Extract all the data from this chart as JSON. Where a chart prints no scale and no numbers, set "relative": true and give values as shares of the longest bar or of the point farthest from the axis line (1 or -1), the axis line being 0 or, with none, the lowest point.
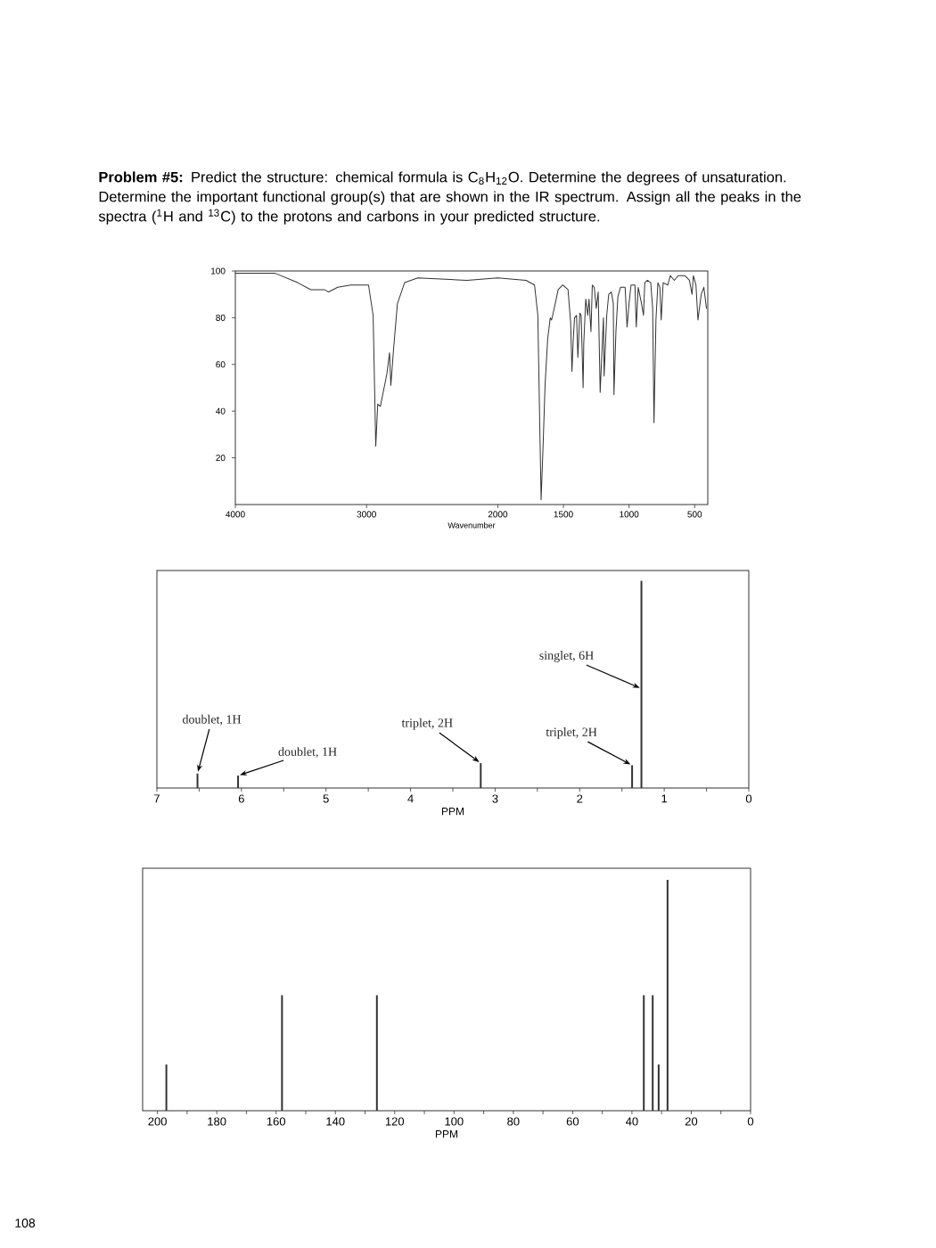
{
  "chart_data": [
    {
      "type": "line",
      "title": "**Problem #5:** Predict the structure: chemical formula is C$_{8}$H$_{12}$O. Determine the degrees of unsaturation. Determine the important functional group(s) that are shown in the IR spectrum. Assign all the peaks in the spectra ($^{1}$H and $^{13}$C) to the protons and carbons in your predicted structure.",
      "xlabel": "Wavenumber",
      "color": "#333333",
      "x": [
        4000,
        3695,
        3525,
        3425,
        3320,
        3290,
        3220,
        3120,
        2985,
        2950,
        2930,
        2915,
        2895,
        2845,
        2825,
        2815,
        2795,
        2765,
        2710,
        2610,
        2235,
        2000,
        1785,
        1720,
        1695,
        1680,
        1670,
        1655,
        1640,
        1620,
        1600,
        1590,
        1570,
        1540,
        1505,
        1465,
        1445,
        1435,
        1425,
        1415,
        1400,
        1390,
        1375,
        1365,
        1350,
        1345,
        1330,
        1315,
        1305,
        1290,
        1280,
        1265,
        1250,
        1235,
        1220,
        1210,
        1195,
        1190,
        1170,
        1155,
        1135,
        1120,
        1115,
        1100,
        1085,
        1065,
        1030,
        1015,
        1000,
        985,
        955,
        945,
        930,
        905,
        890,
        880,
        860,
        835,
        820,
        810,
        795,
        780,
        765,
        755,
        740,
        705,
        685,
        655,
        625,
        575,
        540,
        520,
        510,
        490,
        475,
        450,
        430,
        410
      ],
      "values": [
        99,
        99,
        95,
        92,
        92,
        91,
        93,
        94,
        94,
        81,
        25,
        43,
        42,
        56,
        65,
        51,
        66,
        86,
        95,
        97,
        96,
        97,
        96,
        94,
        81,
        33,
        2,
        25,
        51,
        71,
        80,
        79,
        84,
        92,
        94,
        92,
        78,
        57,
        71,
        80,
        81,
        63,
        82,
        81,
        50,
        69,
        88,
        81,
        88,
        74,
        94,
        93,
        84,
        91,
        48,
        61,
        80,
        55,
        81,
        90,
        91,
        86,
        47,
        74,
        89,
        93,
        93,
        76,
        86,
        94,
        94,
        76,
        93,
        86,
        81,
        95,
        96,
        95,
        84,
        35,
        79,
        95,
        93,
        79,
        95,
        94,
        98,
        96,
        98,
        98,
        96,
        90,
        98,
        94,
        79,
        90,
        93,
        84
      ],
      "xlim": [
        4000,
        400
      ],
      "xticks": [
        4000,
        3000,
        2000,
        1500,
        1000,
        500
      ],
      "ylim": [
        0,
        100
      ],
      "yticks": [
        20,
        40,
        60,
        80,
        100
      ]
    },
    {
      "type": "bar",
      "relative": true,
      "xlabel": "PPM",
      "color": "#333333",
      "x": [
        6.52,
        6.04,
        3.17,
        1.38,
        1.27
      ],
      "values": [
        0.07,
        0.06,
        0.12,
        0.11,
        1
      ],
      "xlim": [
        7,
        0
      ],
      "xticks": [
        7,
        {
          "value": 6.5,
          "label": null
        },
        6,
        {
          "value": 5.5,
          "label": null
        },
        5,
        {
          "value": 4.5,
          "label": null
        },
        4,
        {
          "value": 3.5,
          "label": null
        },
        3,
        {
          "value": 2.5,
          "label": null
        },
        2,
        {
          "value": 1.5,
          "label": null
        },
        1,
        {
          "value": 0.5,
          "label": null
        },
        0
      ],
      "annotations": [
        {
          "text": "doublet, 1H",
          "x": 6.52,
          "y": 0.07
        },
        {
          "text": "doublet, 1H",
          "x": 6.04,
          "y": 0.06
        },
        {
          "text": "triplet, 2H",
          "x": 3.17,
          "y": 0.12
        },
        {
          "text": "singlet, 6H",
          "x": 1.27,
          "y": 0.48
        },
        {
          "text": "triplet, 2H",
          "x": 1.38,
          "y": 0.11
        }
      ]
    },
    {
      "type": "bar",
      "relative": true,
      "xlabel": "PPM",
      "color": "#333333",
      "x": [
        197,
        158,
        126,
        36,
        33,
        31,
        28
      ],
      "values": [
        0.2,
        0.5,
        0.5,
        0.5,
        0.5,
        0.2,
        1
      ],
      "xlim": [
        205,
        0
      ],
      "xticks": [
        200,
        {
          "value": 190,
          "label": null
        },
        180,
        {
          "value": 170,
          "label": null
        },
        160,
        {
          "value": 150,
          "label": null
        },
        140,
        {
          "value": 130,
          "label": null
        },
        120,
        {
          "value": 110,
          "label": null
        },
        100,
        {
          "value": 90,
          "label": null
        },
        80,
        {
          "value": 70,
          "label": null
        },
        60,
        {
          "value": 50,
          "label": null
        },
        40,
        {
          "value": 30,
          "label": null
        },
        20,
        {
          "value": 10,
          "label": null
        },
        0
      ],
      "annotations": [
        "108"
      ]
    }
  ]
}
